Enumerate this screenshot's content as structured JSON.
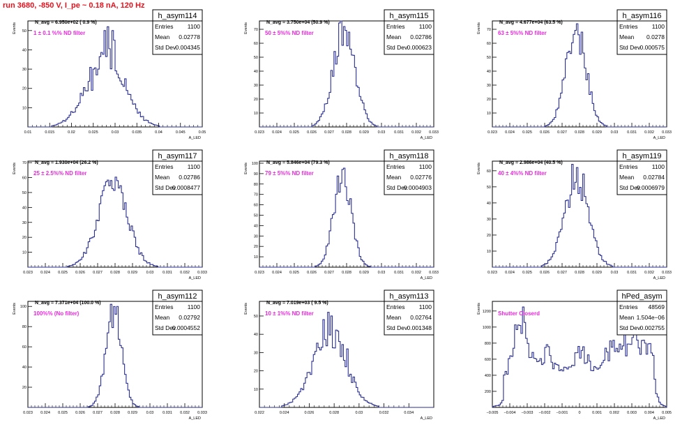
{
  "run_title": "run 3680,  -850 V, I_pe ~ 0.18 nA, 120 Hz",
  "colors": {
    "hist_line": "#2b2f8f",
    "label_magenta": "#e52ad8",
    "title_red": "#e8101c",
    "frame": "#000000"
  },
  "chart_data": [
    {
      "type": "histogram",
      "name": "h_asym114",
      "stats": {
        "entries_label": "Entries",
        "entries": "1100",
        "mean_label": "Mean",
        "mean": "0.02778",
        "std_label": "Std Dev",
        "std": "0.004345"
      },
      "n_avg_label": "N_avg = 6.950e+02 ( 0.9 %)",
      "filter_label": "1 ± 0.1 %% ND filter",
      "xlabel": "A_LED",
      "ylabel": "Events",
      "xlim": [
        0.01,
        0.05
      ],
      "ylim": [
        0,
        55
      ],
      "xticks": [
        0.01,
        0.015,
        0.02,
        0.025,
        0.03,
        0.035,
        0.04,
        0.045,
        0.05
      ],
      "xtick_labels": [
        "0.01",
        "0.015",
        "0.02",
        "0.025",
        "0.03",
        "0.035",
        "0.04",
        "0.045",
        "0.05"
      ],
      "yticks": [
        10,
        20,
        30,
        40,
        50
      ],
      "peaks": [
        {
          "mu": 0.02778,
          "sigma": 0.0043,
          "amp": 36
        }
      ],
      "spikes": [
        [
          0.0275,
          50
        ],
        [
          0.0283,
          52
        ],
        [
          0.0295,
          50
        ],
        [
          0.0298,
          45
        ],
        [
          0.0251,
          30
        ],
        [
          0.0257,
          27
        ],
        [
          0.0322,
          25
        ],
        [
          0.0248,
          19
        ]
      ]
    },
    {
      "type": "histogram",
      "name": "h_asym115",
      "stats": {
        "entries_label": "Entries",
        "entries": "1100",
        "mean_label": "Mean",
        "mean": "0.02786",
        "std_label": "Std Dev",
        "std": "0.000623"
      },
      "n_avg_label": "N_avg = 3.750e+04 (50.9 %)",
      "filter_label": "50 ± 5%% ND filter",
      "xlabel": "A_LED",
      "ylabel": "Events",
      "xlim": [
        0.023,
        0.033
      ],
      "ylim": [
        0,
        76
      ],
      "xticks": [
        0.023,
        0.024,
        0.025,
        0.026,
        0.027,
        0.028,
        0.029,
        0.03,
        0.031,
        0.032,
        0.033
      ],
      "xtick_labels": [
        "0.023",
        "0.024",
        "0.025",
        "0.026",
        "0.027",
        "0.028",
        "0.029",
        "0.03",
        "0.031",
        "0.032",
        "0.033"
      ],
      "yticks": [
        10,
        20,
        30,
        40,
        50,
        60,
        70
      ],
      "peaks": [
        {
          "mu": 0.02786,
          "sigma": 0.00062,
          "amp": 70
        }
      ],
      "spikes": [
        [
          0.0279,
          72
        ],
        [
          0.0281,
          68
        ]
      ]
    },
    {
      "type": "histogram",
      "name": "h_asym116",
      "stats": {
        "entries_label": "Entries",
        "entries": "1100",
        "mean_label": "Mean",
        "mean": "0.0278",
        "std_label": "Std Dev",
        "std": "0.000575"
      },
      "n_avg_label": "N_avg = 4.677e+04 (63.5 %)",
      "filter_label": "63 ± 5%% ND filter",
      "xlabel": "A_LED",
      "ylabel": "Events",
      "xlim": [
        0.023,
        0.033
      ],
      "ylim": [
        0,
        76
      ],
      "xticks": [
        0.023,
        0.024,
        0.025,
        0.026,
        0.027,
        0.028,
        0.029,
        0.03,
        0.031,
        0.032,
        0.033
      ],
      "xtick_labels": [
        "0.023",
        "0.024",
        "0.025",
        "0.026",
        "0.027",
        "0.028",
        "0.029",
        "0.03",
        "0.031",
        "0.032",
        "0.033"
      ],
      "yticks": [
        10,
        20,
        30,
        40,
        50,
        60,
        70
      ],
      "peaks": [
        {
          "mu": 0.0278,
          "sigma": 0.00058,
          "amp": 68
        }
      ],
      "spikes": [
        [
          0.0279,
          74
        ],
        [
          0.0281,
          68
        ]
      ]
    },
    {
      "type": "histogram",
      "name": "h_asym117",
      "stats": {
        "entries_label": "Entries",
        "entries": "1100",
        "mean_label": "Mean",
        "mean": "0.02786",
        "std_label": "Std Dev",
        "std": "0.0008477"
      },
      "n_avg_label": "N_avg = 1.930e+04 (26.2 %)",
      "filter_label": "25 ± 2.5%% ND filter",
      "xlabel": "A_LED",
      "ylabel": "Events",
      "xlim": [
        0.023,
        0.033
      ],
      "ylim": [
        0,
        71
      ],
      "xticks": [
        0.023,
        0.024,
        0.025,
        0.026,
        0.027,
        0.028,
        0.029,
        0.03,
        0.031,
        0.032,
        0.033
      ],
      "xtick_labels": [
        "0.023",
        "0.024",
        "0.025",
        "0.026",
        "0.027",
        "0.028",
        "0.029",
        "0.03",
        "0.031",
        "0.032",
        "0.033"
      ],
      "yticks": [
        10,
        20,
        30,
        40,
        50,
        60,
        70
      ],
      "peaks": [
        {
          "mu": 0.02786,
          "sigma": 0.00085,
          "amp": 55
        }
      ],
      "spikes": [
        [
          0.0278,
          58
        ]
      ]
    },
    {
      "type": "histogram",
      "name": "h_asym118",
      "stats": {
        "entries_label": "Entries",
        "entries": "1100",
        "mean_label": "Mean",
        "mean": "0.02776",
        "std_label": "Std Dev",
        "std": "0.0004903"
      },
      "n_avg_label": "N_avg = 5.846e+04 (79.3 %)",
      "filter_label": "79 ± 5%% ND filter",
      "xlabel": "A_LED",
      "ylabel": "Events",
      "xlim": [
        0.023,
        0.033
      ],
      "ylim": [
        0,
        102
      ],
      "xticks": [
        0.023,
        0.024,
        0.025,
        0.026,
        0.027,
        0.028,
        0.029,
        0.03,
        0.031,
        0.032,
        0.033
      ],
      "xtick_labels": [
        "0.023",
        "0.024",
        "0.025",
        "0.026",
        "0.027",
        "0.028",
        "0.029",
        "0.03",
        "0.031",
        "0.032",
        "0.033"
      ],
      "yticks": [
        10,
        20,
        30,
        40,
        50,
        60,
        70,
        80,
        90,
        100
      ],
      "peaks": [
        {
          "mu": 0.02776,
          "sigma": 0.0005,
          "amp": 88
        }
      ],
      "spikes": [
        [
          0.0278,
          94
        ]
      ]
    },
    {
      "type": "histogram",
      "name": "h_asym119",
      "stats": {
        "entries_label": "Entries",
        "entries": "1100",
        "mean_label": "Mean",
        "mean": "0.02784",
        "std_label": "Std Dev",
        "std": "0.0006979"
      },
      "n_avg_label": "N_avg = 2.986e+04 (40.5 %)",
      "filter_label": "40 ± 4%% ND filter",
      "xlabel": "A_LED",
      "ylabel": "Events",
      "xlim": [
        0.023,
        0.033
      ],
      "ylim": [
        0,
        66
      ],
      "xticks": [
        0.023,
        0.024,
        0.025,
        0.026,
        0.027,
        0.028,
        0.029,
        0.03,
        0.031,
        0.032,
        0.033
      ],
      "xtick_labels": [
        "0.023",
        "0.024",
        "0.025",
        "0.026",
        "0.027",
        "0.028",
        "0.029",
        "0.03",
        "0.031",
        "0.032",
        "0.033"
      ],
      "yticks": [
        10,
        20,
        30,
        40,
        50,
        60
      ],
      "peaks": [
        {
          "mu": 0.02784,
          "sigma": 0.0007,
          "amp": 52
        }
      ],
      "spikes": [
        [
          0.0276,
          64
        ],
        [
          0.0279,
          62
        ],
        [
          0.0282,
          58
        ]
      ]
    },
    {
      "type": "histogram",
      "name": "h_asym112",
      "stats": {
        "entries_label": "Entries",
        "entries": "1100",
        "mean_label": "Mean",
        "mean": "0.02792",
        "std_label": "Std Dev",
        "std": "0.0004552"
      },
      "n_avg_label": "N_avg = 7.371e+04 (100.0 %)",
      "filter_label": "100%% (No filter)",
      "xlabel": "A_LED",
      "ylabel": "Events",
      "xlim": [
        0.023,
        0.033
      ],
      "ylim": [
        0,
        105
      ],
      "xticks": [
        0.023,
        0.024,
        0.025,
        0.026,
        0.027,
        0.028,
        0.029,
        0.03,
        0.031,
        0.032,
        0.033
      ],
      "xtick_labels": [
        "0.023",
        "0.024",
        "0.025",
        "0.026",
        "0.027",
        "0.028",
        "0.029",
        "0.03",
        "0.031",
        "0.032",
        "0.033"
      ],
      "yticks": [
        20,
        40,
        60,
        80,
        100
      ],
      "peaks": [
        {
          "mu": 0.02792,
          "sigma": 0.00045,
          "amp": 95
        }
      ],
      "spikes": [
        [
          0.0281,
          100
        ]
      ]
    },
    {
      "type": "histogram",
      "name": "h_asym113",
      "stats": {
        "entries_label": "Entries",
        "entries": "1100",
        "mean_label": "Mean",
        "mean": "0.02764",
        "std_label": "Std Dev",
        "std": "0.001348"
      },
      "n_avg_label": "N_avg = 7.019e+03 ( 9.5 %)",
      "filter_label": "10 ± 1%% ND filter",
      "xlabel": "A_LED",
      "ylabel": "Events",
      "xlim": [
        0.022,
        0.036
      ],
      "ylim": [
        0,
        58
      ],
      "xticks": [
        0.022,
        0.024,
        0.026,
        0.028,
        0.03,
        0.032,
        0.034
      ],
      "xtick_labels": [
        "0.022",
        "0.024",
        "0.026",
        "0.028",
        "0.03",
        "0.032",
        "0.034"
      ],
      "yticks": [
        10,
        20,
        30,
        40,
        50
      ],
      "peaks": [
        {
          "mu": 0.02764,
          "sigma": 0.00135,
          "amp": 40
        }
      ],
      "spikes": [
        [
          0.0275,
          52
        ],
        [
          0.0278,
          50
        ],
        [
          0.0272,
          48
        ],
        [
          0.029,
          32
        ]
      ]
    },
    {
      "type": "histogram",
      "name": "hPed_asym",
      "stats": {
        "entries_label": "Entries",
        "entries": "48569",
        "mean_label": "Mean",
        "mean": "1.504e−06",
        "std_label": "Std Dev",
        "std": "0.002755"
      },
      "n_avg_label": "",
      "filter_label": "Shutter Closerd",
      "xlabel": "A_LED",
      "ylabel": "Events",
      "xlim": [
        -0.005,
        0.005
      ],
      "ylim": [
        0,
        1320
      ],
      "xticks": [
        -0.005,
        -0.004,
        -0.003,
        -0.002,
        -0.001,
        0,
        0.001,
        0.002,
        0.003,
        0.004,
        0.005
      ],
      "xtick_labels": [
        "−0.005",
        "−0.004",
        "−0.003",
        "−0.002",
        "−0.001",
        "0",
        "0.001",
        "0.002",
        "0.003",
        "0.004",
        "0.005"
      ],
      "yticks": [
        200,
        400,
        600,
        800,
        1000,
        1200
      ],
      "peaks": [
        {
          "mu": -0.0034,
          "sigma": 0.00045,
          "amp": 820
        },
        {
          "mu": -0.0019,
          "sigma": 0.0005,
          "amp": 420
        },
        {
          "mu": 0.0,
          "sigma": 0.0006,
          "amp": 430
        },
        {
          "mu": 0.0019,
          "sigma": 0.00055,
          "amp": 480
        },
        {
          "mu": 0.0032,
          "sigma": 0.0005,
          "amp": 620
        },
        {
          "mu": 0.0041,
          "sigma": 0.00025,
          "amp": 350
        }
      ],
      "baseline": 240,
      "spikes": [
        [
          -0.0032,
          1250
        ],
        [
          0.0026,
          1100
        ],
        [
          0.0038,
          800
        ]
      ]
    }
  ]
}
